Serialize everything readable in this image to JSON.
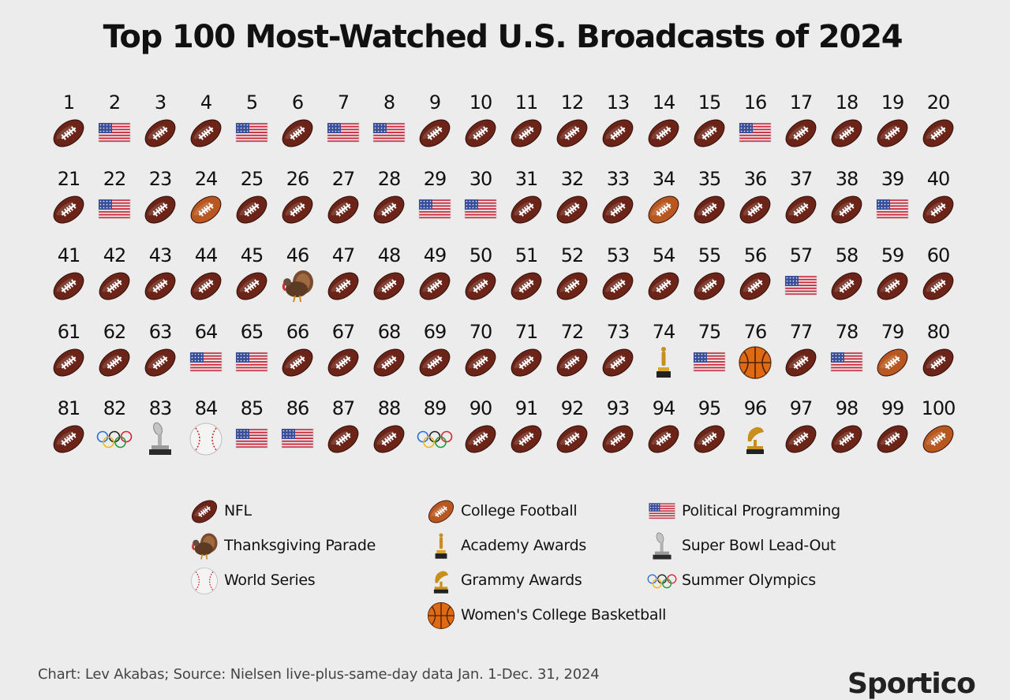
{
  "title": "Top 100 Most-Watched U.S. Broadcasts of 2024",
  "source": "Chart: Lev Akabas; Source: Nielsen live-plus-same-day data Jan. 1-Dec. 31, 2024",
  "logo": "Sportico",
  "colors": {
    "nfl": "#6b2417",
    "college_football": "#b8571f",
    "flag_red": "#c8283a",
    "flag_blue": "#3a4f9a",
    "gold": "#c98f1e",
    "basketball": "#e06a14"
  },
  "legend": [
    {
      "key": "nfl",
      "label": "NFL",
      "icon": "football-icon"
    },
    {
      "key": "college_football",
      "label": "College Football",
      "icon": "college-football-icon"
    },
    {
      "key": "political",
      "label": "Political Programming",
      "icon": "us-flag-icon"
    },
    {
      "key": "thanksgiving",
      "label": "Thanksgiving Parade",
      "icon": "turkey-icon"
    },
    {
      "key": "academy",
      "label": "Academy Awards",
      "icon": "oscar-icon"
    },
    {
      "key": "superbowl_leadout",
      "label": "Super Bowl Lead-Out",
      "icon": "trophy-icon"
    },
    {
      "key": "world_series",
      "label": "World Series",
      "icon": "baseball-icon"
    },
    {
      "key": "grammy",
      "label": "Grammy Awards",
      "icon": "grammy-icon"
    },
    {
      "key": "olympics",
      "label": "Summer Olympics",
      "icon": "olympic-rings-icon"
    },
    {
      "key": "womens_basketball",
      "label": "Women's College Basketball",
      "icon": "basketball-icon"
    }
  ],
  "chart_data": {
    "type": "table",
    "title": "Top 100 Most-Watched U.S. Broadcasts of 2024",
    "ranks": [
      1,
      2,
      3,
      4,
      5,
      6,
      7,
      8,
      9,
      10,
      11,
      12,
      13,
      14,
      15,
      16,
      17,
      18,
      19,
      20,
      21,
      22,
      23,
      24,
      25,
      26,
      27,
      28,
      29,
      30,
      31,
      32,
      33,
      34,
      35,
      36,
      37,
      38,
      39,
      40,
      41,
      42,
      43,
      44,
      45,
      46,
      47,
      48,
      49,
      50,
      51,
      52,
      53,
      54,
      55,
      56,
      57,
      58,
      59,
      60,
      61,
      62,
      63,
      64,
      65,
      66,
      67,
      68,
      69,
      70,
      71,
      72,
      73,
      74,
      75,
      76,
      77,
      78,
      79,
      80,
      81,
      82,
      83,
      84,
      85,
      86,
      87,
      88,
      89,
      90,
      91,
      92,
      93,
      94,
      95,
      96,
      97,
      98,
      99,
      100
    ],
    "categories": [
      "nfl",
      "political",
      "nfl",
      "nfl",
      "political",
      "nfl",
      "political",
      "political",
      "nfl",
      "nfl",
      "nfl",
      "nfl",
      "nfl",
      "nfl",
      "nfl",
      "political",
      "nfl",
      "nfl",
      "nfl",
      "nfl",
      "nfl",
      "political",
      "nfl",
      "college_football",
      "nfl",
      "nfl",
      "nfl",
      "nfl",
      "political",
      "political",
      "nfl",
      "nfl",
      "nfl",
      "college_football",
      "nfl",
      "nfl",
      "nfl",
      "nfl",
      "political",
      "nfl",
      "nfl",
      "nfl",
      "nfl",
      "nfl",
      "nfl",
      "thanksgiving",
      "nfl",
      "nfl",
      "nfl",
      "nfl",
      "nfl",
      "nfl",
      "nfl",
      "nfl",
      "nfl",
      "nfl",
      "political",
      "nfl",
      "nfl",
      "nfl",
      "nfl",
      "nfl",
      "nfl",
      "political",
      "political",
      "nfl",
      "nfl",
      "nfl",
      "nfl",
      "nfl",
      "nfl",
      "nfl",
      "nfl",
      "academy",
      "political",
      "womens_basketball",
      "nfl",
      "political",
      "college_football",
      "nfl",
      "nfl",
      "olympics",
      "superbowl_leadout",
      "world_series",
      "political",
      "political",
      "nfl",
      "nfl",
      "olympics",
      "nfl",
      "nfl",
      "nfl",
      "nfl",
      "nfl",
      "nfl",
      "grammy",
      "nfl",
      "nfl",
      "nfl",
      "college_football"
    ]
  }
}
